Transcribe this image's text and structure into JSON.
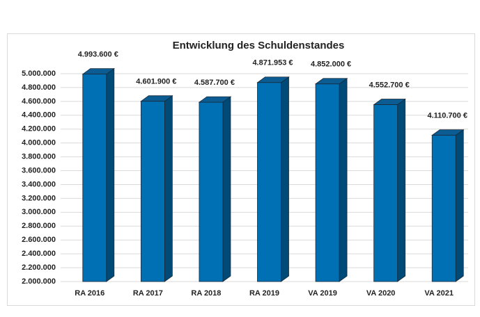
{
  "chart_data": {
    "type": "bar3d",
    "title": "Entwicklung des Schuldenstandes",
    "categories": [
      "RA 2016",
      "RA 2017",
      "RA 2018",
      "RA 2019",
      "VA 2019",
      "VA 2020",
      "VA 2021"
    ],
    "values": [
      4993600,
      4601900,
      4587700,
      4871953,
      4852000,
      4552700,
      4110700
    ],
    "value_labels": [
      "4.993.600 €",
      "4.601.900 €",
      "4.587.700 €",
      "4.871.953 €",
      "4.852.000 €",
      "4.552.700 €",
      "4.110.700 €"
    ],
    "color": "#0070b4",
    "ylim": [
      2000000,
      5000000
    ],
    "yticks": [
      {
        "value": 2000000,
        "label": "2.000.000"
      },
      {
        "value": 2200000,
        "label": "2.200.000"
      },
      {
        "value": 2400000,
        "label": "2.400.000"
      },
      {
        "value": 2600000,
        "label": "2.600.000"
      },
      {
        "value": 2800000,
        "label": "2.800.000"
      },
      {
        "value": 3000000,
        "label": "3.000.000"
      },
      {
        "value": 3200000,
        "label": "3.200.000"
      },
      {
        "value": 3400000,
        "label": "3.400.000"
      },
      {
        "value": 3600000,
        "label": "3.600.000"
      },
      {
        "value": 3800000,
        "label": "3.800.000"
      },
      {
        "value": 4000000,
        "label": "4.000.000"
      },
      {
        "value": 4200000,
        "label": "4.200.000"
      },
      {
        "value": 4400000,
        "label": "4.400.000"
      },
      {
        "value": 4600000,
        "label": "4.600.000"
      },
      {
        "value": 4800000,
        "label": "4.800.000"
      },
      {
        "value": 5000000,
        "label": "5.000.000"
      }
    ],
    "grid": true
  }
}
